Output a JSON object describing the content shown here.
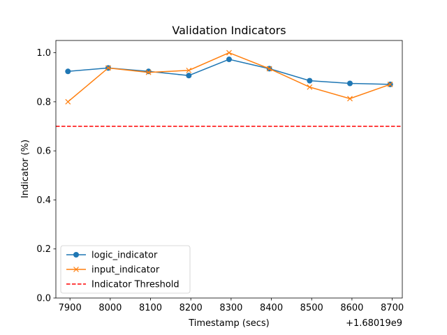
{
  "chart_data": {
    "type": "line",
    "title": "Validation Indicators",
    "xlabel": "Timestamp (secs)",
    "ylabel": "Indicator (%)",
    "x_offset_label": "+1.68019e9",
    "xlim": [
      7865,
      8725
    ],
    "ylim": [
      0.0,
      1.05
    ],
    "x_ticks": [
      7900,
      8000,
      8100,
      8200,
      8300,
      8400,
      8500,
      8600,
      8700
    ],
    "x_tick_labels": [
      "7900",
      "8000",
      "8100",
      "8200",
      "8300",
      "8400",
      "8500",
      "8600",
      "8700"
    ],
    "y_ticks": [
      0.0,
      0.2,
      0.4,
      0.6,
      0.8,
      1.0
    ],
    "y_tick_labels": [
      "0.0",
      "0.2",
      "0.4",
      "0.6",
      "0.8",
      "1.0"
    ],
    "grid": false,
    "legend_position": "lower-left",
    "series": [
      {
        "name": "logic_indicator",
        "color": "#1f77b4",
        "marker": "circle",
        "x": [
          7895,
          7995,
          8095,
          8195,
          8295,
          8395,
          8495,
          8595,
          8695
        ],
        "y": [
          0.924,
          0.938,
          0.924,
          0.907,
          0.973,
          0.935,
          0.886,
          0.875,
          0.871
        ]
      },
      {
        "name": "input_indicator",
        "color": "#ff7f0e",
        "marker": "x",
        "x": [
          7895,
          7995,
          8095,
          8195,
          8295,
          8395,
          8495,
          8595,
          8695
        ],
        "y": [
          0.8,
          0.938,
          0.92,
          0.928,
          1.0,
          0.935,
          0.86,
          0.813,
          0.871
        ]
      }
    ],
    "hlines": [
      {
        "name": "Indicator Threshold",
        "y": 0.7,
        "color": "#ff0000",
        "style": "dashed"
      }
    ]
  }
}
